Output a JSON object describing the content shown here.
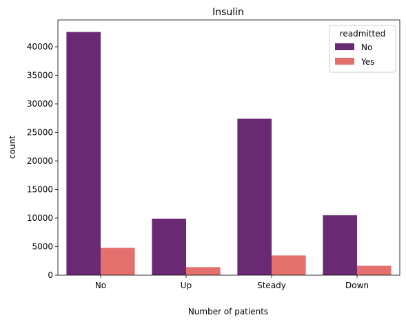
{
  "chart_data": {
    "type": "bar",
    "title": "Insulin",
    "xlabel": "Number of patients",
    "ylabel": "count",
    "categories": [
      "No",
      "Up",
      "Steady",
      "Down"
    ],
    "series": [
      {
        "name": "No",
        "color": "#6a2a73",
        "values": [
          42600,
          9900,
          27400,
          10500
        ]
      },
      {
        "name": "Yes",
        "color": "#e4706e",
        "values": [
          4800,
          1400,
          3450,
          1650
        ]
      }
    ],
    "ylim": [
      0,
      44700
    ],
    "yticks": [
      0,
      5000,
      10000,
      15000,
      20000,
      25000,
      30000,
      35000,
      40000
    ],
    "legend": {
      "title": "readmitted",
      "placement": "top-right"
    },
    "grid": false
  }
}
